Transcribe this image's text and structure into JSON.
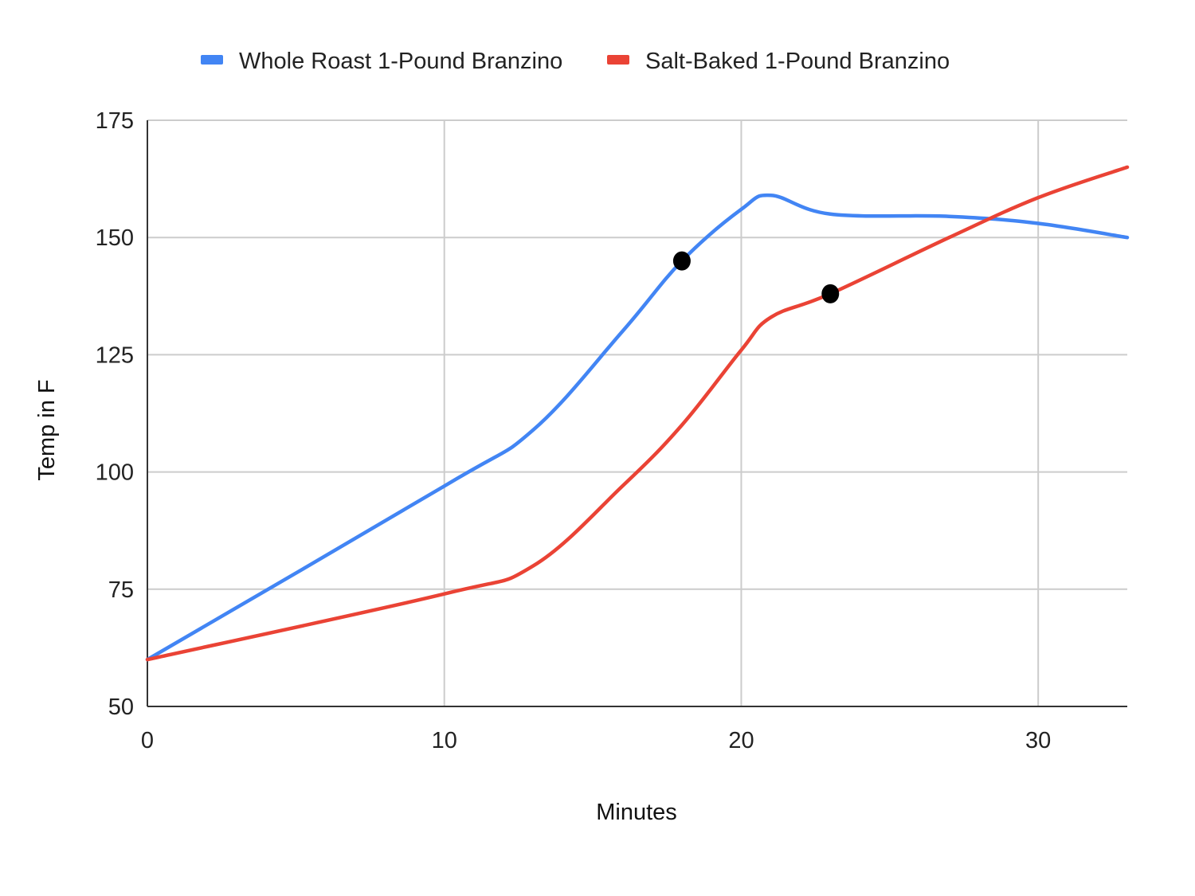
{
  "chart_data": {
    "type": "line",
    "title": "",
    "xlabel": "Minutes",
    "ylabel": "Temp in F",
    "xlim": [
      0,
      33
    ],
    "ylim": [
      50,
      175
    ],
    "xticks": [
      0,
      10,
      20,
      30
    ],
    "yticks": [
      50,
      75,
      100,
      125,
      150,
      175
    ],
    "grid": true,
    "legend_position": "top",
    "series": [
      {
        "name": "Whole Roast 1-Pound Branzino",
        "color": "#4285F4",
        "x": [
          0,
          10,
          13,
          16,
          18,
          20,
          21,
          23,
          27,
          30,
          33
        ],
        "y": [
          60,
          97,
          109,
          130,
          145,
          156,
          159,
          155,
          154.5,
          153,
          150
        ]
      },
      {
        "name": "Salt-Baked 1-Pound Branzino",
        "color": "#EA4335",
        "x": [
          0,
          10,
          13,
          16,
          18,
          20,
          21,
          23,
          27,
          30,
          33
        ],
        "y": [
          60,
          74,
          80,
          97,
          110,
          126,
          133,
          138,
          150,
          158.5,
          165
        ]
      }
    ],
    "markers": [
      {
        "series": "Whole Roast 1-Pound Branzino",
        "x": 18,
        "y": 145,
        "color": "#000000"
      },
      {
        "series": "Salt-Baked 1-Pound Branzino",
        "x": 23,
        "y": 138,
        "color": "#000000"
      }
    ]
  }
}
